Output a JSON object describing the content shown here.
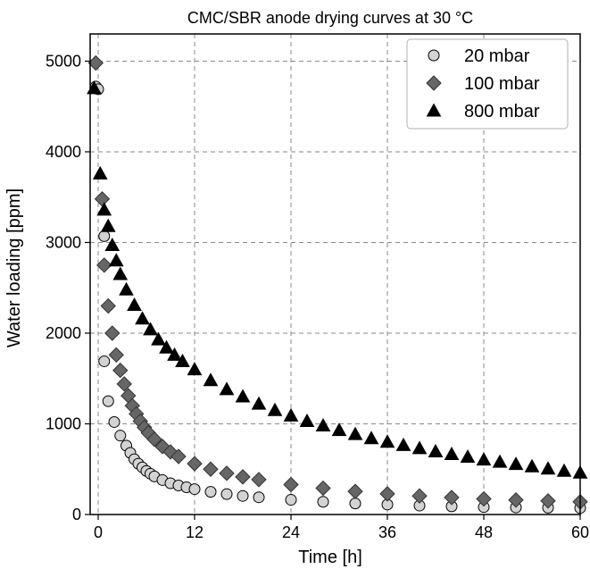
{
  "chart_data": {
    "type": "scatter",
    "title": "CMC/SBR anode drying curves at 30 °C",
    "xlabel": "Time [h]",
    "ylabel": "Water loading [ppm]",
    "xlim": [
      -1,
      60
    ],
    "ylim": [
      0,
      5300
    ],
    "x_ticks": [
      0,
      12,
      24,
      36,
      48,
      60
    ],
    "y_ticks": [
      0,
      1000,
      2000,
      3000,
      4000,
      5000
    ],
    "grid": true,
    "legend_position": "top-right",
    "series": [
      {
        "name": "20 mbar",
        "marker": "circle",
        "fill": "#d3d3d3",
        "x": [
          -0.3,
          0,
          0.75,
          0.75,
          1.25,
          2.0,
          2.75,
          3.5,
          4.0,
          4.5,
          5.0,
          5.5,
          6.0,
          6.5,
          7.0,
          8,
          9,
          10,
          11,
          12,
          14,
          16,
          18,
          20,
          24,
          28,
          32,
          36,
          40,
          44,
          48,
          52,
          56,
          60
        ],
        "y": [
          4720,
          4690,
          3070,
          1690,
          1250,
          1020,
          870,
          760,
          680,
          610,
          560,
          520,
          480,
          450,
          420,
          380,
          345,
          320,
          300,
          280,
          250,
          225,
          205,
          190,
          162,
          140,
          122,
          110,
          98,
          90,
          82,
          78,
          75,
          72
        ]
      },
      {
        "name": "100 mbar",
        "marker": "diamond",
        "fill": "#666666",
        "x": [
          -0.3,
          0.5,
          0.75,
          1.25,
          1.75,
          2.25,
          2.75,
          3.25,
          3.75,
          4.25,
          4.75,
          5.25,
          5.75,
          6.25,
          7,
          8,
          9,
          10,
          12,
          14,
          16,
          18,
          20,
          24,
          28,
          32,
          36,
          40,
          44,
          48,
          52,
          56,
          60
        ],
        "y": [
          4980,
          3480,
          2750,
          2300,
          2000,
          1760,
          1590,
          1440,
          1310,
          1200,
          1110,
          1030,
          960,
          900,
          830,
          750,
          690,
          640,
          560,
          500,
          455,
          415,
          385,
          330,
          290,
          255,
          228,
          205,
          188,
          172,
          160,
          150,
          140
        ]
      },
      {
        "name": "800 mbar",
        "marker": "triangle",
        "fill": "#000000",
        "x": [
          -0.5,
          0.25,
          0.75,
          1.25,
          1.75,
          2.25,
          2.75,
          3.5,
          4.5,
          5.5,
          6.5,
          7.5,
          8.5,
          9.5,
          10.5,
          12,
          14,
          16,
          18,
          20,
          22,
          24,
          26,
          28,
          30,
          32,
          34,
          36,
          38,
          40,
          42,
          44,
          46,
          48,
          50,
          52,
          54,
          56,
          58,
          60
        ],
        "y": [
          4700,
          3760,
          3360,
          3180,
          2970,
          2800,
          2650,
          2480,
          2310,
          2160,
          2040,
          1930,
          1840,
          1760,
          1690,
          1600,
          1480,
          1380,
          1300,
          1220,
          1150,
          1090,
          1030,
          980,
          930,
          885,
          840,
          800,
          765,
          730,
          695,
          665,
          635,
          605,
          580,
          555,
          530,
          505,
          480,
          460
        ]
      }
    ]
  }
}
